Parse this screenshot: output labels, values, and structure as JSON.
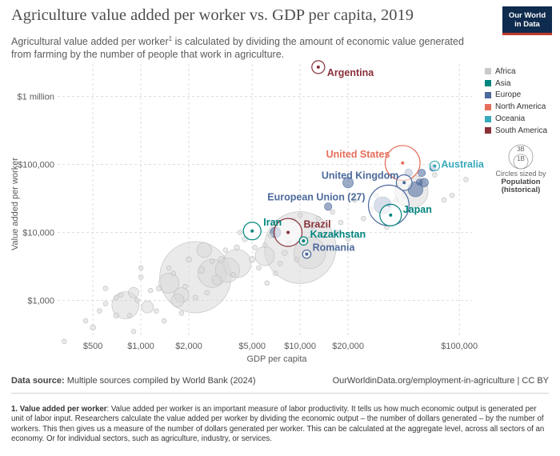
{
  "header": {
    "title": "Agriculture value added per worker vs. GDP per capita, 2019",
    "subtitle_part1": "Agricultural value added per worker",
    "subtitle_sup": "1",
    "subtitle_part2": " is calculated by dividing the amount of economic value generated from farming by the number of people that work in agriculture.",
    "logo_line1": "Our World",
    "logo_line2": "in Data"
  },
  "legend": {
    "items": [
      {
        "label": "Africa",
        "color": "#c9c9c9"
      },
      {
        "label": "Asia",
        "color": "#00847e"
      },
      {
        "label": "Europe",
        "color": "#4c6a9c"
      },
      {
        "label": "North America",
        "color": "#e56e5a"
      },
      {
        "label": "Oceania",
        "color": "#38aaba"
      },
      {
        "label": "South America",
        "color": "#883039"
      }
    ],
    "size_big": "3B",
    "size_small": "1B",
    "size_caption": "Circles sized by",
    "size_var": "Population",
    "size_var2": "(historical)"
  },
  "chart_data": {
    "type": "scatter",
    "title": "Agriculture value added per worker vs. GDP per capita, 2019",
    "xlabel": "GDP per capita",
    "ylabel": "Value added per worker",
    "xscale": "log",
    "yscale": "log",
    "xlim": [
      300,
      120000
    ],
    "ylim": [
      300,
      3000000
    ],
    "x_ticks": [
      {
        "value": 500,
        "label": "$500"
      },
      {
        "value": 1000,
        "label": "$1,000"
      },
      {
        "value": 2000,
        "label": "$2,000"
      },
      {
        "value": 5000,
        "label": "$5,000"
      },
      {
        "value": 10000,
        "label": "$10,000"
      },
      {
        "value": 20000,
        "label": "$20,000"
      },
      {
        "value": 100000,
        "label": "$100,000"
      }
    ],
    "y_ticks": [
      {
        "value": 1000,
        "label": "$1,000"
      },
      {
        "value": 10000,
        "label": "$10,000"
      },
      {
        "value": 100000,
        "label": "$100,000"
      },
      {
        "value": 1000000,
        "label": "$1 million"
      }
    ],
    "grid": true,
    "labeled_points": [
      {
        "name": "Argentina",
        "region": "South America",
        "x": 13000,
        "y": 2700000,
        "pop": 45
      },
      {
        "name": "United States",
        "region": "North America",
        "x": 44000,
        "y": 105000,
        "pop": 330
      },
      {
        "name": "Australia",
        "region": "Oceania",
        "x": 70000,
        "y": 95000,
        "pop": 25
      },
      {
        "name": "United Kingdom",
        "region": "Europe",
        "x": 45000,
        "y": 54000,
        "pop": 67
      },
      {
        "name": "European Union (27)",
        "region": "Europe",
        "x": 36000,
        "y": 25000,
        "pop": 447
      },
      {
        "name": "Japan",
        "region": "Asia",
        "x": 37000,
        "y": 18000,
        "pop": 126
      },
      {
        "name": "Iran",
        "region": "Asia",
        "x": 5000,
        "y": 10500,
        "pop": 84
      },
      {
        "name": "Brazil",
        "region": "South America",
        "x": 8400,
        "y": 10000,
        "pop": 211
      },
      {
        "name": "Kazakhstan",
        "region": "Asia",
        "x": 10500,
        "y": 7500,
        "pop": 19
      },
      {
        "name": "Romania",
        "region": "Europe",
        "x": 11000,
        "y": 4800,
        "pop": 19
      }
    ],
    "other_points": [
      {
        "region": "Europe",
        "x": 20000,
        "y": 54000,
        "pop": 30
      },
      {
        "region": "Europe",
        "x": 60000,
        "y": 54000,
        "pop": 20
      },
      {
        "region": "Europe",
        "x": 48000,
        "y": 76000,
        "pop": 15
      },
      {
        "region": "Europe",
        "x": 15000,
        "y": 24000,
        "pop": 15
      },
      {
        "region": "Europe",
        "x": 58000,
        "y": 75000,
        "pop": 15
      },
      {
        "region": "Europe",
        "x": 56000,
        "y": 55000,
        "pop": 10
      },
      {
        "region": "Europe",
        "x": 68000,
        "y": 88000,
        "pop": 10
      },
      {
        "region": "Europe",
        "x": 7000,
        "y": 10000,
        "pop": 30
      },
      {
        "region": "Europe",
        "x": 53000,
        "y": 43000,
        "pop": 60
      },
      {
        "region": "Europe",
        "x": 33000,
        "y": 25000,
        "pop": 80
      },
      {
        "region": "Africa",
        "x": 2200,
        "y": 2200,
        "pop": 1380
      },
      {
        "region": "Africa",
        "x": 10000,
        "y": 6000,
        "pop": 1400
      },
      {
        "region": "Africa",
        "x": 2800,
        "y": 2500,
        "pop": 215
      },
      {
        "region": "Africa",
        "x": 11500,
        "y": 5000,
        "pop": 270
      },
      {
        "region": "Africa",
        "x": 4000,
        "y": 3500,
        "pop": 220
      },
      {
        "region": "Africa",
        "x": 800,
        "y": 850,
        "pop": 200
      },
      {
        "region": "Africa",
        "x": 3500,
        "y": 2800,
        "pop": 160
      },
      {
        "region": "Africa",
        "x": 1500,
        "y": 1800,
        "pop": 110
      },
      {
        "region": "Africa",
        "x": 6000,
        "y": 4500,
        "pop": 100
      },
      {
        "region": "Africa",
        "x": 1700,
        "y": 1000,
        "pop": 45
      },
      {
        "region": "Africa",
        "x": 2500,
        "y": 5500,
        "pop": 60
      },
      {
        "region": "Africa",
        "x": 1800,
        "y": 1200,
        "pop": 60
      },
      {
        "region": "Africa",
        "x": 50000,
        "y": 40000,
        "pop": 300
      },
      {
        "region": "Africa",
        "x": 900,
        "y": 1300,
        "pop": 30
      },
      {
        "region": "Africa",
        "x": 1100,
        "y": 800,
        "pop": 40
      },
      {
        "region": "Africa",
        "x": 3000,
        "y": 2000,
        "pop": 25
      },
      {
        "region": "Africa",
        "x": 1300,
        "y": 1500,
        "pop": 8
      },
      {
        "region": "Africa",
        "x": 700,
        "y": 600,
        "pop": 8
      },
      {
        "region": "Africa",
        "x": 600,
        "y": 900,
        "pop": 6
      },
      {
        "region": "Africa",
        "x": 1500,
        "y": 3000,
        "pop": 6
      },
      {
        "region": "Africa",
        "x": 1000,
        "y": 3000,
        "pop": 6
      },
      {
        "region": "Africa",
        "x": 2000,
        "y": 4000,
        "pop": 8
      },
      {
        "region": "Africa",
        "x": 2400,
        "y": 2800,
        "pop": 12
      },
      {
        "region": "Africa",
        "x": 3200,
        "y": 4000,
        "pop": 10
      },
      {
        "region": "Africa",
        "x": 4000,
        "y": 6000,
        "pop": 8
      },
      {
        "region": "Africa",
        "x": 4500,
        "y": 8000,
        "pop": 8
      },
      {
        "region": "Africa",
        "x": 5000,
        "y": 4000,
        "pop": 10
      },
      {
        "region": "Africa",
        "x": 5500,
        "y": 3000,
        "pop": 6
      },
      {
        "region": "Africa",
        "x": 6000,
        "y": 6500,
        "pop": 6
      },
      {
        "region": "Africa",
        "x": 7000,
        "y": 14000,
        "pop": 6
      },
      {
        "region": "Africa",
        "x": 8000,
        "y": 5000,
        "pop": 8
      },
      {
        "region": "Africa",
        "x": 9000,
        "y": 15000,
        "pop": 6
      },
      {
        "region": "Africa",
        "x": 10000,
        "y": 18000,
        "pop": 6
      },
      {
        "region": "Africa",
        "x": 12000,
        "y": 12000,
        "pop": 6
      },
      {
        "region": "Africa",
        "x": 14000,
        "y": 9000,
        "pop": 6
      },
      {
        "region": "Africa",
        "x": 16000,
        "y": 20000,
        "pop": 6
      },
      {
        "region": "Africa",
        "x": 18000,
        "y": 14000,
        "pop": 6
      },
      {
        "region": "Africa",
        "x": 20000,
        "y": 8000,
        "pop": 6
      },
      {
        "region": "Africa",
        "x": 22000,
        "y": 30000,
        "pop": 6
      },
      {
        "region": "Africa",
        "x": 25000,
        "y": 16000,
        "pop": 6
      },
      {
        "region": "Africa",
        "x": 30000,
        "y": 35000,
        "pop": 6
      },
      {
        "region": "Africa",
        "x": 40000,
        "y": 30000,
        "pop": 6
      },
      {
        "region": "Africa",
        "x": 45000,
        "y": 35000,
        "pop": 6
      },
      {
        "region": "Africa",
        "x": 80000,
        "y": 30000,
        "pop": 6
      },
      {
        "region": "Africa",
        "x": 90000,
        "y": 35000,
        "pop": 6
      },
      {
        "region": "Africa",
        "x": 110000,
        "y": 60000,
        "pop": 6
      },
      {
        "region": "Africa",
        "x": 500,
        "y": 400,
        "pop": 8
      },
      {
        "region": "Africa",
        "x": 450,
        "y": 500,
        "pop": 6
      },
      {
        "region": "Africa",
        "x": 330,
        "y": 250,
        "pop": 6
      },
      {
        "region": "Africa",
        "x": 550,
        "y": 700,
        "pop": 6
      },
      {
        "region": "Africa",
        "x": 750,
        "y": 1200,
        "pop": 6
      },
      {
        "region": "Africa",
        "x": 850,
        "y": 600,
        "pop": 6
      },
      {
        "region": "Africa",
        "x": 950,
        "y": 1000,
        "pop": 6
      },
      {
        "region": "Africa",
        "x": 1150,
        "y": 1400,
        "pop": 6
      },
      {
        "region": "Africa",
        "x": 1250,
        "y": 700,
        "pop": 6
      },
      {
        "region": "Africa",
        "x": 600,
        "y": 1500,
        "pop": 6
      },
      {
        "region": "Africa",
        "x": 700,
        "y": 1100,
        "pop": 6
      },
      {
        "region": "Africa",
        "x": 1400,
        "y": 500,
        "pop": 6
      },
      {
        "region": "Africa",
        "x": 1600,
        "y": 2500,
        "pop": 6
      },
      {
        "region": "Africa",
        "x": 1900,
        "y": 1600,
        "pop": 6
      },
      {
        "region": "Africa",
        "x": 2600,
        "y": 1300,
        "pop": 6
      },
      {
        "region": "Africa",
        "x": 2800,
        "y": 3800,
        "pop": 6
      },
      {
        "region": "Africa",
        "x": 3400,
        "y": 5500,
        "pop": 6
      },
      {
        "region": "Africa",
        "x": 3800,
        "y": 2400,
        "pop": 6
      },
      {
        "region": "Africa",
        "x": 4200,
        "y": 10000,
        "pop": 6
      },
      {
        "region": "Africa",
        "x": 5200,
        "y": 6000,
        "pop": 6
      },
      {
        "region": "Africa",
        "x": 6500,
        "y": 9000,
        "pop": 6
      },
      {
        "region": "Africa",
        "x": 7500,
        "y": 3500,
        "pop": 6
      },
      {
        "region": "Africa",
        "x": 8500,
        "y": 7000,
        "pop": 6
      },
      {
        "region": "Africa",
        "x": 9500,
        "y": 4000,
        "pop": 6
      },
      {
        "region": "Africa",
        "x": 13000,
        "y": 16000,
        "pop": 6
      },
      {
        "region": "Africa",
        "x": 17000,
        "y": 10000,
        "pop": 6
      },
      {
        "region": "Africa",
        "x": 28000,
        "y": 22000,
        "pop": 6
      },
      {
        "region": "Africa",
        "x": 35000,
        "y": 12000,
        "pop": 6
      },
      {
        "region": "Africa",
        "x": 42000,
        "y": 50000,
        "pop": 6
      },
      {
        "region": "Africa",
        "x": 70000,
        "y": 70000,
        "pop": 6
      },
      {
        "region": "Africa",
        "x": 900,
        "y": 350,
        "pop": 6
      },
      {
        "region": "Africa",
        "x": 1800,
        "y": 650,
        "pop": 6
      },
      {
        "region": "Africa",
        "x": 2200,
        "y": 1100,
        "pop": 6
      },
      {
        "region": "Africa",
        "x": 1000,
        "y": 2200,
        "pop": 6
      },
      {
        "region": "Africa",
        "x": 6200,
        "y": 1800,
        "pop": 6
      },
      {
        "region": "Africa",
        "x": 7000,
        "y": 2500,
        "pop": 6
      }
    ]
  },
  "footer": {
    "source_label": "Data source:",
    "source_text": " Multiple sources compiled by World Bank (2024)",
    "url": "OurWorldinData.org/employment-in-agriculture | CC BY"
  },
  "note": {
    "label": "1. Value added per worker",
    "text": ": Value added per worker is an important measure of labor productivity. It tells us how much economic output is generated per unit of labor input. Researchers calculate the value added per worker by dividing the economic output – the number of dollars generated – by the number of workers. This then gives us a measure of the number of dollars generated per worker. This can be calculated at the aggregate level, across all sectors of an economy. Or for individual sectors, such as agriculture, industry, or services."
  }
}
